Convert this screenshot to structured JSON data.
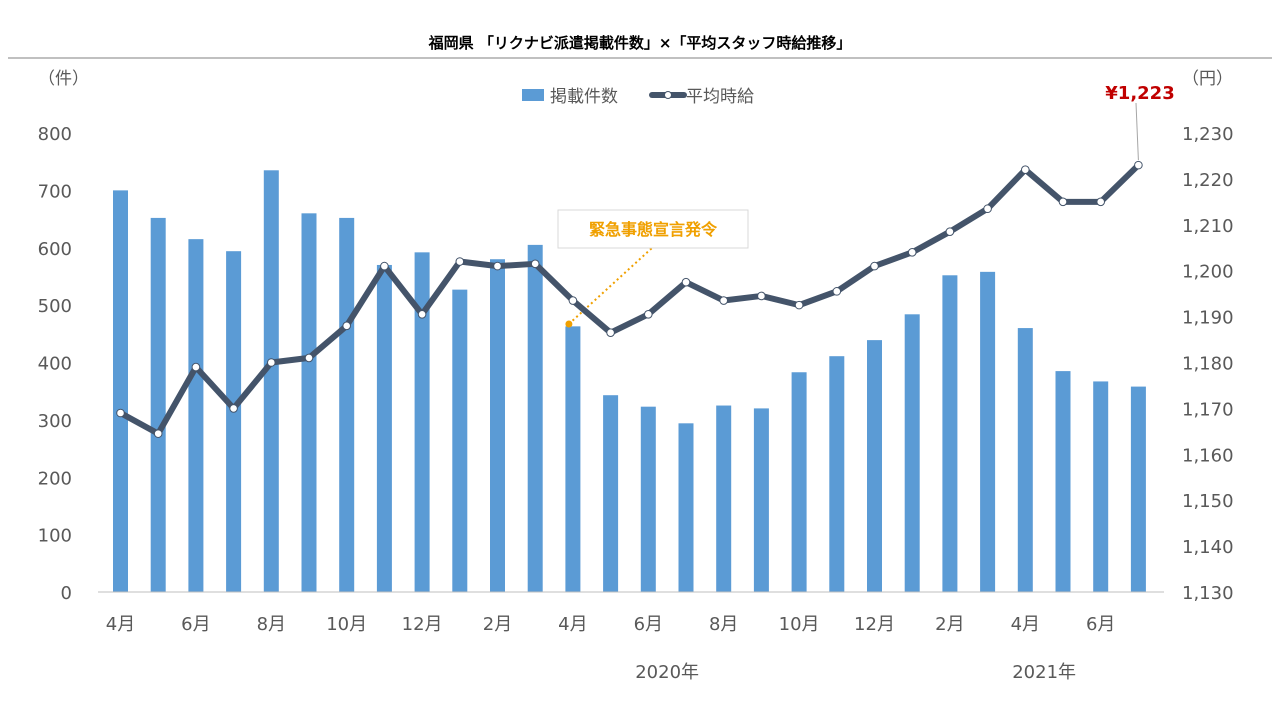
{
  "chart_data": {
    "type": "bar+line",
    "title": "福岡県 「リクナビ派遣掲載件数」×「平均スタッフ時給推移」",
    "left_unit": "（件）",
    "right_unit": "（円）",
    "categories": [
      "2019-04",
      "2019-05",
      "2019-06",
      "2019-07",
      "2019-08",
      "2019-09",
      "2019-10",
      "2019-11",
      "2019-12",
      "2020-01",
      "2020-02",
      "2020-03",
      "2020-04",
      "2020-05",
      "2020-06",
      "2020-07",
      "2020-08",
      "2020-09",
      "2020-10",
      "2020-11",
      "2020-12",
      "2021-01",
      "2021-02",
      "2021-03",
      "2021-04",
      "2021-05",
      "2021-06",
      "2021-07"
    ],
    "x_tick_labels": [
      "4月",
      "",
      "6月",
      "",
      "8月",
      "",
      "10月",
      "",
      "12月",
      "",
      "2月",
      "",
      "4月",
      "",
      "6月",
      "",
      "8月",
      "",
      "10月",
      "",
      "12月",
      "",
      "2月",
      "",
      "4月",
      "",
      "6月",
      ""
    ],
    "year_labels": [
      {
        "label": "2020年",
        "index": 14.5
      },
      {
        "label": "2021年",
        "index": 24.5
      }
    ],
    "series": [
      {
        "name": "掲載件数",
        "type": "bar",
        "axis": "left",
        "color": "#5B9BD5",
        "values": [
          700,
          652,
          615,
          594,
          735,
          660,
          652,
          570,
          592,
          527,
          580,
          605,
          463,
          343,
          323,
          294,
          325,
          320,
          383,
          411,
          439,
          484,
          552,
          558,
          460,
          385,
          367,
          358
        ]
      },
      {
        "name": "平均時給",
        "type": "line",
        "axis": "right",
        "color": "#44546A",
        "values": [
          1169,
          1164.5,
          1179,
          1170,
          1180,
          1181,
          1188,
          1201,
          1190.5,
          1202,
          1201,
          1201.5,
          1193.5,
          1186.5,
          1190.5,
          1197.5,
          1193.5,
          1194.5,
          1192.5,
          1195.5,
          1201,
          1204,
          1208.5,
          1213.5,
          1222,
          1215,
          1215,
          1223
        ]
      }
    ],
    "left_axis": {
      "min": 0,
      "max": 800,
      "step": 100
    },
    "right_axis": {
      "min": 1130,
      "max": 1230,
      "step": 10
    },
    "annotation": {
      "text": "緊急事態宣言発令",
      "index": 12,
      "color": "#F0A000"
    },
    "last_value_label": {
      "text": "¥1,223",
      "color": "#C00000"
    },
    "legend_position": "top-center",
    "grid": false
  }
}
